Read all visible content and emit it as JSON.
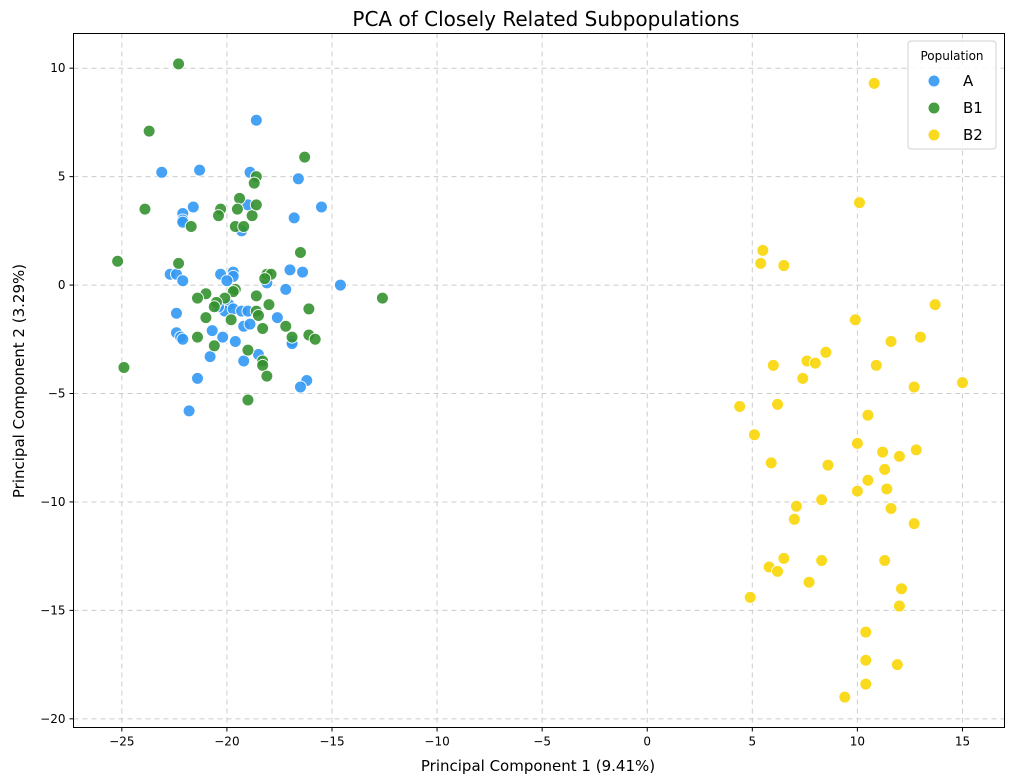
{
  "chart_data": {
    "type": "scatter",
    "title": "PCA of Closely Related Subpopulations",
    "xlabel": "Principal Component 1 (9.41%)",
    "ylabel": "Principal Component 2 (3.29%)",
    "xlim": [
      -27.3,
      17.0
    ],
    "ylim": [
      -20.4,
      11.6
    ],
    "xticks": [
      -25,
      -20,
      -15,
      -10,
      -5,
      0,
      5,
      10,
      15
    ],
    "yticks": [
      -20,
      -15,
      -10,
      -5,
      0,
      5,
      10
    ],
    "grid": true,
    "legend": {
      "title": "Population",
      "position": "top-right"
    },
    "series": [
      {
        "name": "A",
        "color": "#3399f3",
        "points": [
          [
            -18.6,
            7.6
          ],
          [
            -23.1,
            5.2
          ],
          [
            -21.3,
            5.3
          ],
          [
            -18.9,
            5.2
          ],
          [
            -16.6,
            4.9
          ],
          [
            -19.0,
            3.7
          ],
          [
            -21.6,
            3.6
          ],
          [
            -22.1,
            3.3
          ],
          [
            -22.1,
            3.0
          ],
          [
            -22.1,
            2.9
          ],
          [
            -16.8,
            3.1
          ],
          [
            -15.5,
            3.6
          ],
          [
            -19.3,
            2.5
          ],
          [
            -22.7,
            0.5
          ],
          [
            -22.4,
            0.5
          ],
          [
            -22.1,
            0.2
          ],
          [
            -20.3,
            0.5
          ],
          [
            -19.7,
            0.6
          ],
          [
            -19.7,
            0.4
          ],
          [
            -20.0,
            0.2
          ],
          [
            -18.1,
            0.1
          ],
          [
            -17.0,
            0.7
          ],
          [
            -16.4,
            0.6
          ],
          [
            -14.6,
            0.0
          ],
          [
            -17.2,
            -0.2
          ],
          [
            -19.9,
            -0.9
          ],
          [
            -20.1,
            -1.2
          ],
          [
            -19.7,
            -1.1
          ],
          [
            -19.3,
            -1.2
          ],
          [
            -19.0,
            -1.2
          ],
          [
            -22.4,
            -1.3
          ],
          [
            -20.4,
            -1.0
          ],
          [
            -17.6,
            -1.5
          ],
          [
            -19.2,
            -1.9
          ],
          [
            -18.9,
            -1.8
          ],
          [
            -20.7,
            -2.1
          ],
          [
            -22.4,
            -2.2
          ],
          [
            -22.2,
            -2.4
          ],
          [
            -22.1,
            -2.5
          ],
          [
            -20.2,
            -2.4
          ],
          [
            -19.6,
            -2.6
          ],
          [
            -16.9,
            -2.6
          ],
          [
            -16.9,
            -2.7
          ],
          [
            -18.5,
            -3.2
          ],
          [
            -20.8,
            -3.3
          ],
          [
            -19.2,
            -3.5
          ],
          [
            -21.4,
            -4.3
          ],
          [
            -16.2,
            -4.4
          ],
          [
            -16.5,
            -4.7
          ],
          [
            -21.8,
            -5.8
          ]
        ]
      },
      {
        "name": "B1",
        "color": "#35922f",
        "points": [
          [
            -22.3,
            10.2
          ],
          [
            -23.7,
            7.1
          ],
          [
            -16.3,
            5.9
          ],
          [
            -18.6,
            5.0
          ],
          [
            -18.7,
            4.7
          ],
          [
            -23.9,
            3.5
          ],
          [
            -19.4,
            4.0
          ],
          [
            -20.3,
            3.5
          ],
          [
            -19.5,
            3.5
          ],
          [
            -20.4,
            3.2
          ],
          [
            -18.8,
            3.2
          ],
          [
            -18.6,
            3.7
          ],
          [
            -19.6,
            2.7
          ],
          [
            -19.2,
            2.7
          ],
          [
            -21.7,
            2.7
          ],
          [
            -16.5,
            1.5
          ],
          [
            -25.2,
            1.1
          ],
          [
            -22.3,
            1.0
          ],
          [
            -18.1,
            0.5
          ],
          [
            -17.9,
            0.5
          ],
          [
            -18.2,
            0.3
          ],
          [
            -19.6,
            -0.2
          ],
          [
            -19.7,
            -0.3
          ],
          [
            -21.0,
            -0.4
          ],
          [
            -21.4,
            -0.6
          ],
          [
            -18.6,
            -0.5
          ],
          [
            -20.1,
            -0.6
          ],
          [
            -20.5,
            -0.8
          ],
          [
            -20.6,
            -1.0
          ],
          [
            -18.0,
            -0.9
          ],
          [
            -16.1,
            -1.1
          ],
          [
            -18.6,
            -1.2
          ],
          [
            -18.5,
            -1.4
          ],
          [
            -21.0,
            -1.5
          ],
          [
            -19.8,
            -1.6
          ],
          [
            -17.2,
            -1.9
          ],
          [
            -18.3,
            -2.0
          ],
          [
            -16.1,
            -2.3
          ],
          [
            -15.8,
            -2.5
          ],
          [
            -16.9,
            -2.4
          ],
          [
            -21.4,
            -2.4
          ],
          [
            -20.6,
            -2.8
          ],
          [
            -19.0,
            -3.0
          ],
          [
            -18.3,
            -3.5
          ],
          [
            -18.3,
            -3.7
          ],
          [
            -24.9,
            -3.8
          ],
          [
            -18.1,
            -4.2
          ],
          [
            -19.0,
            -5.3
          ],
          [
            -12.6,
            -0.6
          ]
        ]
      },
      {
        "name": "B2",
        "color": "#fad607",
        "points": [
          [
            10.8,
            9.3
          ],
          [
            10.1,
            3.8
          ],
          [
            5.5,
            1.6
          ],
          [
            5.4,
            1.0
          ],
          [
            6.5,
            0.9
          ],
          [
            13.7,
            -0.9
          ],
          [
            9.9,
            -1.6
          ],
          [
            13.0,
            -2.4
          ],
          [
            11.6,
            -2.6
          ],
          [
            8.5,
            -3.1
          ],
          [
            7.6,
            -3.5
          ],
          [
            8.0,
            -3.6
          ],
          [
            6.0,
            -3.7
          ],
          [
            10.9,
            -3.7
          ],
          [
            7.4,
            -4.3
          ],
          [
            12.7,
            -4.7
          ],
          [
            15.0,
            -4.5
          ],
          [
            4.4,
            -5.6
          ],
          [
            6.2,
            -5.5
          ],
          [
            10.5,
            -6.0
          ],
          [
            5.1,
            -6.9
          ],
          [
            10.0,
            -7.3
          ],
          [
            12.8,
            -7.6
          ],
          [
            11.2,
            -7.7
          ],
          [
            12.0,
            -7.9
          ],
          [
            5.9,
            -8.2
          ],
          [
            8.6,
            -8.3
          ],
          [
            11.3,
            -8.5
          ],
          [
            10.5,
            -9.0
          ],
          [
            11.4,
            -9.4
          ],
          [
            10.0,
            -9.5
          ],
          [
            8.3,
            -9.9
          ],
          [
            7.1,
            -10.2
          ],
          [
            11.6,
            -10.3
          ],
          [
            7.0,
            -10.8
          ],
          [
            12.7,
            -11.0
          ],
          [
            6.5,
            -12.6
          ],
          [
            8.3,
            -12.7
          ],
          [
            11.3,
            -12.7
          ],
          [
            5.8,
            -13.0
          ],
          [
            6.2,
            -13.2
          ],
          [
            7.7,
            -13.7
          ],
          [
            12.1,
            -14.0
          ],
          [
            4.9,
            -14.4
          ],
          [
            12.0,
            -14.8
          ],
          [
            10.4,
            -16.0
          ],
          [
            10.4,
            -17.3
          ],
          [
            11.9,
            -17.5
          ],
          [
            10.4,
            -18.4
          ],
          [
            9.4,
            -19.0
          ]
        ]
      }
    ]
  }
}
